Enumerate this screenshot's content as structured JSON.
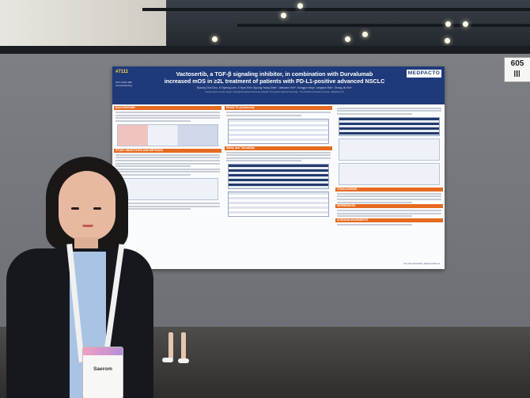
{
  "poster": {
    "id": "#7111",
    "meeting": "SITC 2024 39th Annual Meeting",
    "title_line1": "Vactosertib, a TGF-β signaling inhibitor, in combination with Durvalumab",
    "title_line2": "increased mOS in ≥2L treatment of patients with PD-L1-positive advanced NSCLC",
    "authors": "Byoung Chul Cho¹, Ki Hyeong Lee², Ji Hyun Kim³, Byoung Young Shim⁴, Jaehyeon Kim⁵, Youngjoo Yang⁶, Jongwon Shin⁶, Seong-Jin Kim⁶",
    "affiliations": "¹Yonsei Cancer Center, Seoul; ²Chungbuk National University Hospital; ³Chungnam National University; ⁴The Catholic University of Korea; ⁵MedPacto Inc.",
    "logo": "MEDPACTO",
    "sections": [
      "BACKGROUND",
      "STUDY OBJECTIVES AND METHODS",
      "RESULTS (Continued)",
      "Safety and Tolerability",
      "CONCLUSIONS",
      "REFERENCES",
      "ACKNOWLEDGEMENTS"
    ],
    "footer": "For more information, please contact us"
  },
  "board_number": "605",
  "badge": {
    "name": "Saerom"
  }
}
